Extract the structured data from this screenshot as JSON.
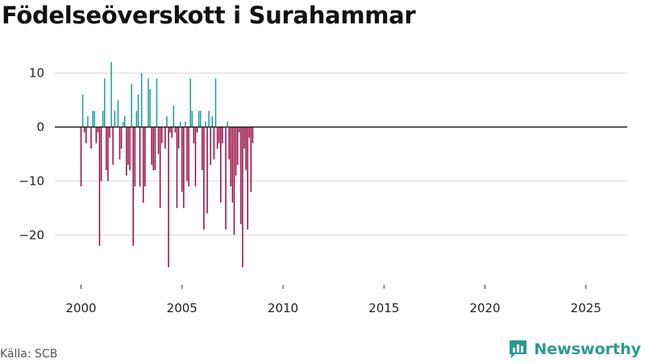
{
  "title": "Födelseöverskott i Surahammar",
  "source": "Källa: SCB",
  "brand": {
    "name": "Newsworthy",
    "icon": "chart-logo-icon"
  },
  "colors": {
    "positive": "#1a9e96",
    "negative": "#960a3f",
    "zero_line": "#222222",
    "grid": "#d9d9d9"
  },
  "chart_data": {
    "type": "bar",
    "title": "Födelseöverskott i Surahammar",
    "xlabel": "",
    "ylabel": "",
    "ylim": [
      -28,
      14
    ],
    "yticks": [
      10,
      0,
      -10,
      -20
    ],
    "ytick_labels": [
      "10",
      "0",
      "−10",
      "−20"
    ],
    "xticks": [
      2000,
      2005,
      2010,
      2015,
      2020,
      2025
    ],
    "grid": true,
    "frequency": "monthly",
    "start": "2000-01",
    "values": [
      -11,
      6,
      -1,
      -3,
      2,
      0,
      -4,
      3,
      3,
      -3,
      -1,
      -22,
      -10,
      3,
      9,
      -8,
      -10,
      -2,
      12,
      -7,
      3,
      0,
      5,
      -6,
      -4,
      1,
      2,
      -9,
      -7,
      -8,
      8,
      -22,
      -11,
      3,
      6,
      -11,
      10,
      -14,
      -11,
      0,
      9,
      7,
      -7,
      -8,
      -8,
      9,
      -5,
      -15,
      -3,
      0,
      -4,
      2,
      -26,
      -1,
      -2,
      4,
      -1,
      -15,
      -4,
      1,
      -12,
      -15,
      1,
      -10,
      -11,
      9,
      3,
      -3,
      -11,
      -1,
      3,
      3,
      -8,
      -19,
      1,
      -16,
      3,
      -7,
      2,
      -6,
      9,
      -4,
      -3,
      -14,
      -3,
      0,
      -19,
      1,
      -6,
      -11,
      -14,
      -20,
      -9,
      -7,
      -1,
      -18,
      -26,
      -4,
      -8,
      -19,
      -2,
      -12,
      -3
    ]
  }
}
